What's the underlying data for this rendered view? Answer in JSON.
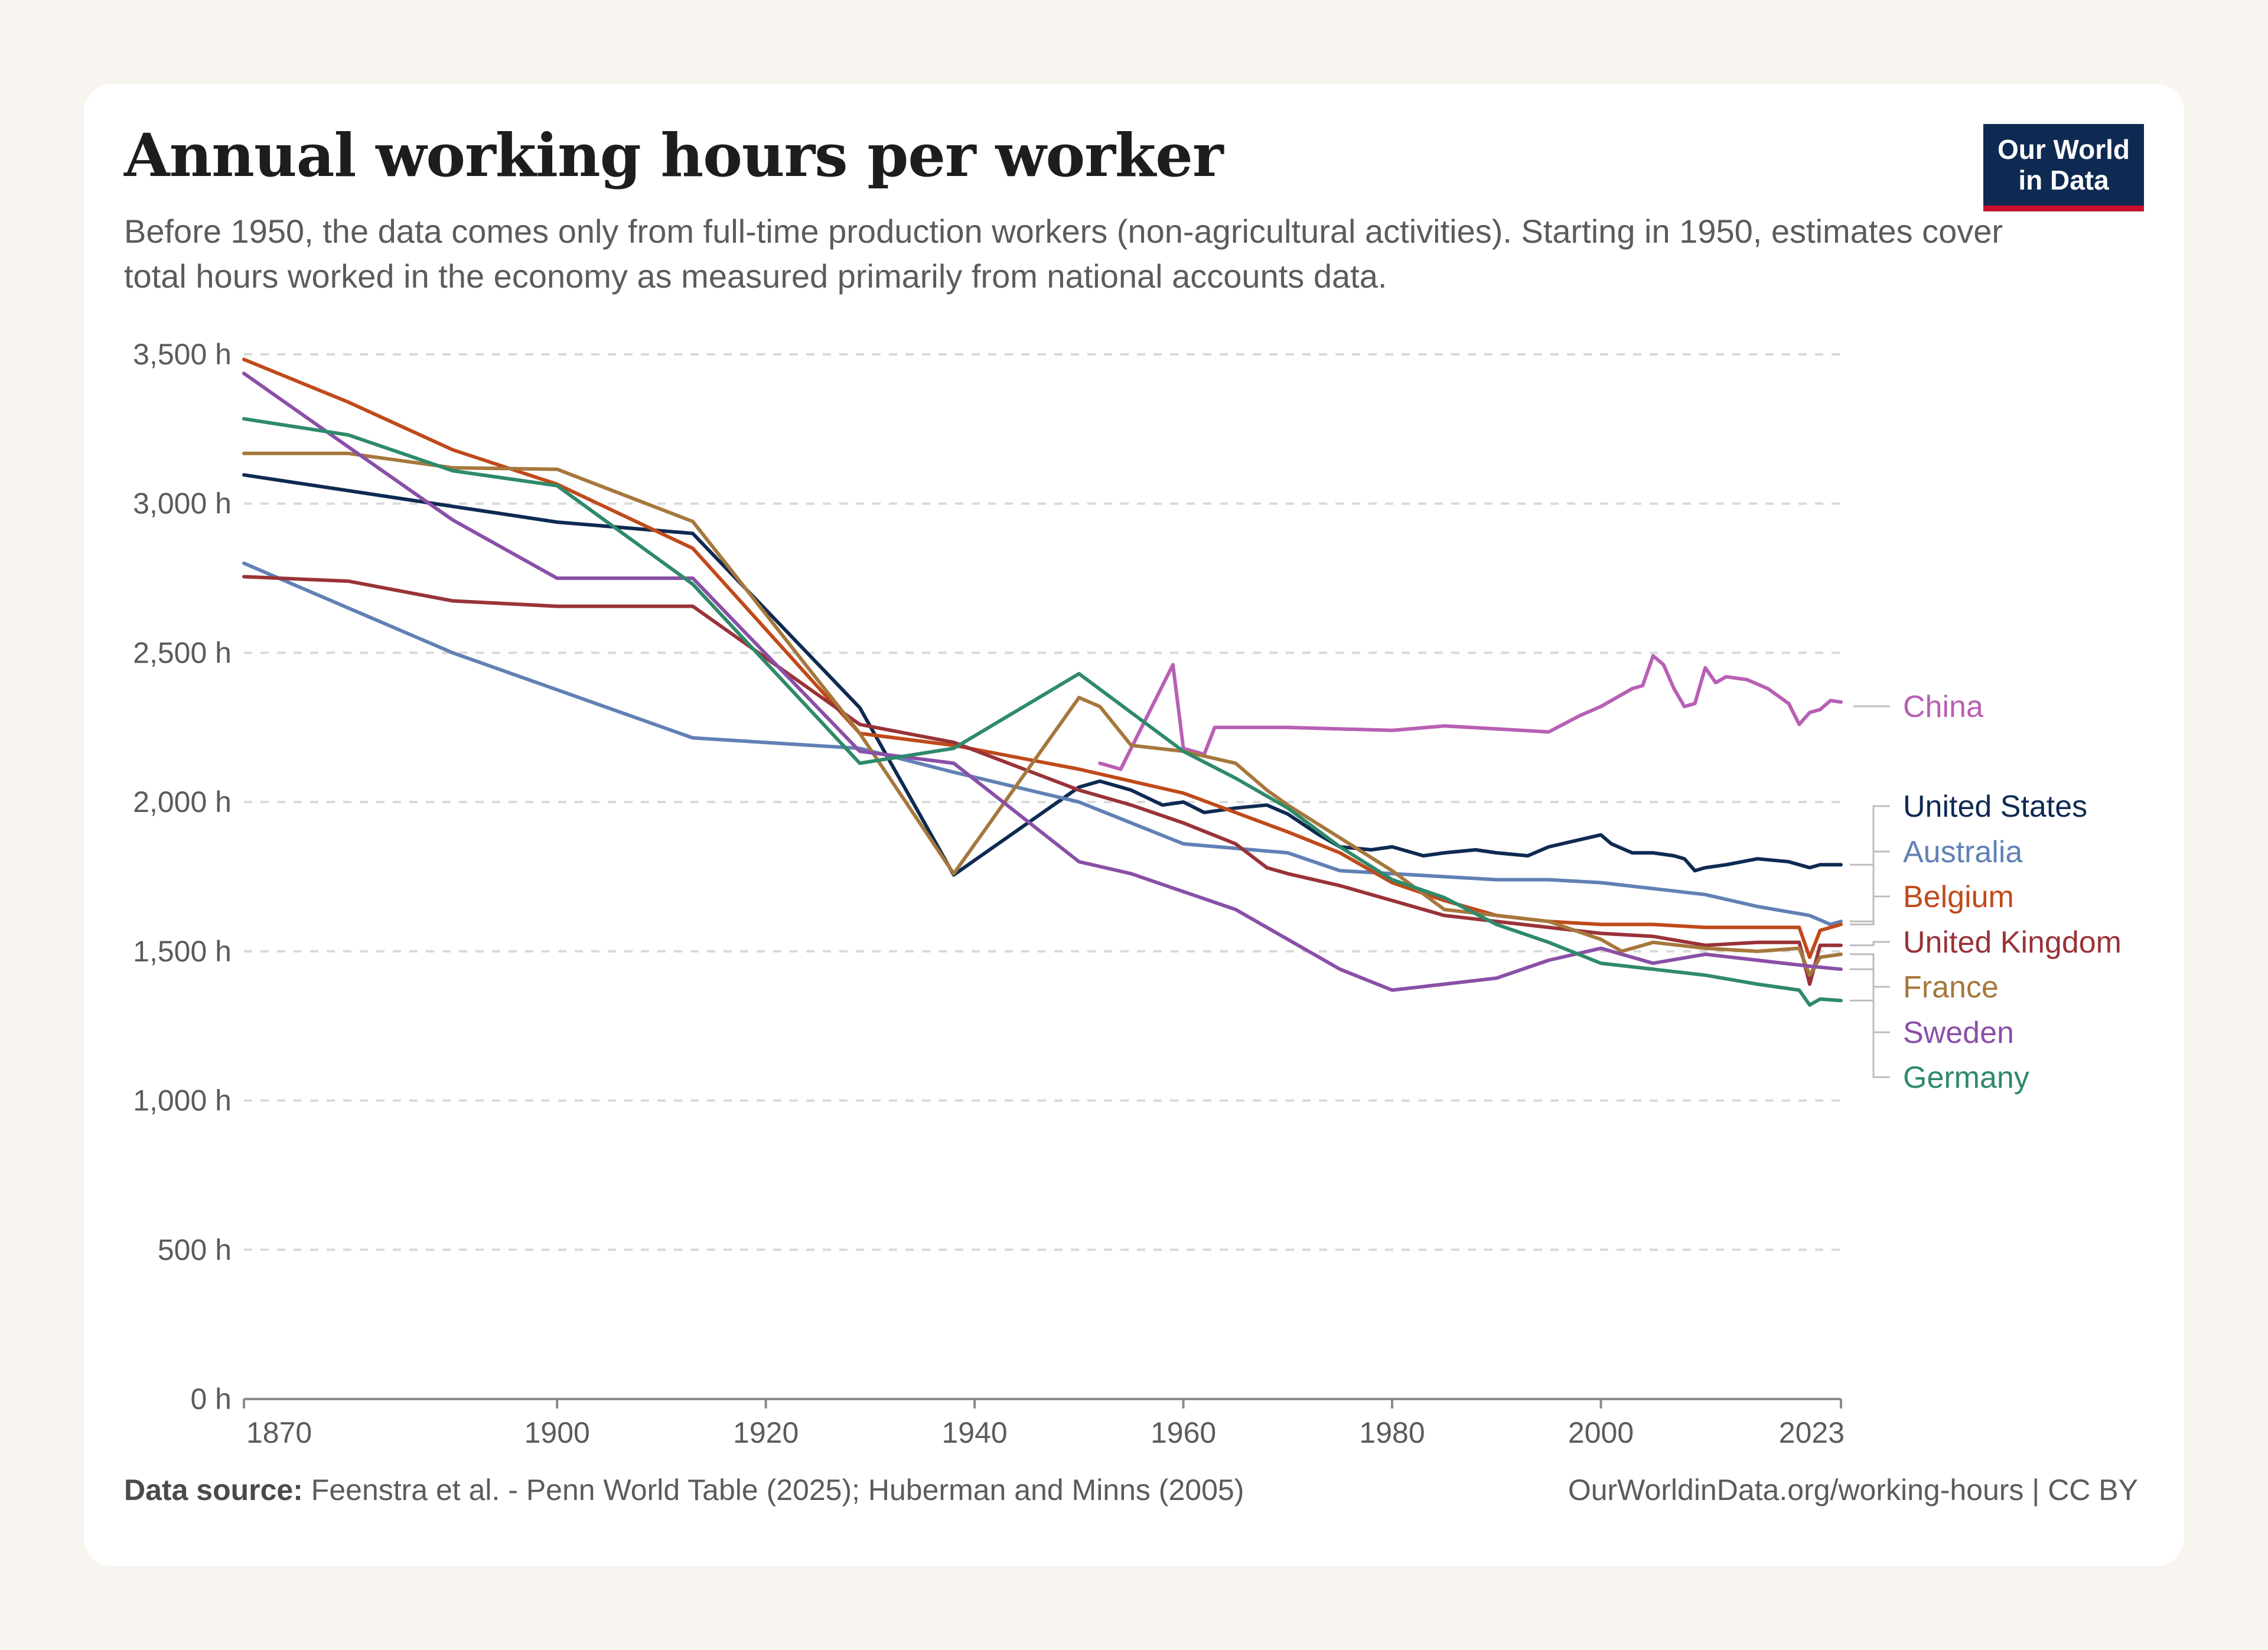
{
  "header": {
    "title": "Annual working hours per worker",
    "subtitle": "Before 1950, the data comes only from full-time production workers (non-agricultural activities). Starting in 1950, estimates cover total hours worked in the economy as measured primarily from national accounts data."
  },
  "logo": {
    "line1": "Our World",
    "line2": "in Data"
  },
  "footer": {
    "source_label": "Data source:",
    "source_text": "Feenstra et al. - Penn World Table (2025); Huberman and Minns (2005)",
    "link": "OurWorldinData.org/working-hours | CC BY"
  },
  "chart_data": {
    "type": "line",
    "title": "Annual working hours per worker",
    "xlim": [
      1870,
      2023
    ],
    "ylim": [
      0,
      3500
    ],
    "yticks": [
      0,
      500,
      1000,
      1500,
      2000,
      2500,
      3000,
      3500
    ],
    "ytick_labels": [
      "0 h",
      "500 h",
      "1,000 h",
      "1,500 h",
      "2,000 h",
      "2,500 h",
      "3,000 h",
      "3,500 h"
    ],
    "xticks": [
      1870,
      1900,
      1920,
      1940,
      1960,
      1980,
      2000,
      2023
    ],
    "xtick_labels": [
      "1870",
      "1900",
      "1920",
      "1940",
      "1960",
      "1980",
      "2000",
      "2023"
    ],
    "grid": true,
    "legend": "right, labels at line ends",
    "series": [
      {
        "name": "China",
        "color": "#b85fb4",
        "x": [
          1952,
          1954,
          1959,
          1960,
          1962,
          1963,
          1970,
          1980,
          1985,
          1990,
          1995,
          1998,
          2000,
          2003,
          2004,
          2005,
          2006,
          2007,
          2008,
          2009,
          2010,
          2011,
          2012,
          2014,
          2016,
          2018,
          2019,
          2020,
          2021,
          2022,
          2023
        ],
        "y": [
          2130,
          2110,
          2460,
          2180,
          2160,
          2250,
          2250,
          2240,
          2255,
          2245,
          2235,
          2290,
          2320,
          2380,
          2390,
          2490,
          2460,
          2380,
          2320,
          2330,
          2450,
          2400,
          2420,
          2410,
          2380,
          2330,
          2260,
          2300,
          2310,
          2340,
          2335
        ]
      },
      {
        "name": "United States",
        "color": "#0e2a52",
        "x": [
          1870,
          1900,
          1913,
          1929,
          1938,
          1950,
          1952,
          1955,
          1958,
          1960,
          1962,
          1965,
          1968,
          1970,
          1973,
          1975,
          1978,
          1980,
          1983,
          1985,
          1988,
          1990,
          1993,
          1995,
          2000,
          2001,
          2003,
          2005,
          2007,
          2008,
          2009,
          2010,
          2012,
          2015,
          2018,
          2019,
          2020,
          2021,
          2023
        ],
        "y": [
          3096,
          2938,
          2900,
          2316,
          1756,
          2050,
          2070,
          2040,
          1990,
          2000,
          1965,
          1980,
          1990,
          1960,
          1890,
          1850,
          1840,
          1850,
          1820,
          1830,
          1840,
          1830,
          1820,
          1850,
          1890,
          1860,
          1830,
          1830,
          1820,
          1810,
          1770,
          1780,
          1790,
          1810,
          1800,
          1790,
          1780,
          1790,
          1790
        ]
      },
      {
        "name": "Australia",
        "color": "#6180b5",
        "x": [
          1870,
          1890,
          1913,
          1929,
          1938,
          1950,
          1960,
          1970,
          1975,
          1980,
          1985,
          1990,
          1995,
          2000,
          2005,
          2010,
          2015,
          2020,
          2022,
          2023
        ],
        "y": [
          2800,
          2500,
          2215,
          2180,
          2100,
          2000,
          1860,
          1830,
          1770,
          1760,
          1750,
          1740,
          1740,
          1730,
          1710,
          1690,
          1650,
          1620,
          1590,
          1600
        ]
      },
      {
        "name": "Belgium",
        "color": "#c04a1a",
        "x": [
          1870,
          1880,
          1890,
          1900,
          1913,
          1929,
          1938,
          1950,
          1960,
          1970,
          1975,
          1980,
          1985,
          1990,
          1995,
          2000,
          2005,
          2010,
          2015,
          2019,
          2020,
          2021,
          2023
        ],
        "y": [
          3483,
          3340,
          3180,
          3065,
          2850,
          2230,
          2190,
          2110,
          2030,
          1900,
          1830,
          1730,
          1670,
          1620,
          1600,
          1590,
          1590,
          1580,
          1580,
          1580,
          1480,
          1570,
          1590
        ]
      },
      {
        "name": "United Kingdom",
        "color": "#993338",
        "x": [
          1870,
          1880,
          1890,
          1900,
          1913,
          1929,
          1938,
          1950,
          1955,
          1960,
          1965,
          1968,
          1970,
          1975,
          1980,
          1985,
          1990,
          1995,
          2000,
          2005,
          2010,
          2015,
          2019,
          2020,
          2021,
          2023
        ],
        "y": [
          2755,
          2740,
          2674,
          2656,
          2656,
          2260,
          2200,
          2040,
          1990,
          1930,
          1860,
          1780,
          1760,
          1720,
          1670,
          1620,
          1600,
          1580,
          1560,
          1550,
          1520,
          1530,
          1530,
          1390,
          1520,
          1520
        ]
      },
      {
        "name": "France",
        "color": "#a6773c",
        "x": [
          1870,
          1880,
          1890,
          1900,
          1913,
          1929,
          1938,
          1950,
          1952,
          1955,
          1960,
          1965,
          1968,
          1970,
          1975,
          1980,
          1985,
          1990,
          1995,
          2000,
          2002,
          2005,
          2010,
          2015,
          2019,
          2020,
          2021,
          2023
        ],
        "y": [
          3168,
          3168,
          3120,
          3115,
          2940,
          2230,
          1760,
          2350,
          2320,
          2190,
          2170,
          2130,
          2040,
          1990,
          1880,
          1770,
          1640,
          1620,
          1600,
          1540,
          1500,
          1530,
          1510,
          1500,
          1510,
          1420,
          1480,
          1490
        ]
      },
      {
        "name": "Sweden",
        "color": "#8a4fa7",
        "x": [
          1870,
          1880,
          1890,
          1900,
          1913,
          1929,
          1938,
          1950,
          1955,
          1960,
          1965,
          1970,
          1975,
          1980,
          1985,
          1990,
          1995,
          2000,
          2005,
          2010,
          2015,
          2020,
          2023
        ],
        "y": [
          3436,
          3190,
          2945,
          2750,
          2750,
          2170,
          2130,
          1800,
          1760,
          1700,
          1640,
          1540,
          1440,
          1370,
          1390,
          1410,
          1470,
          1510,
          1460,
          1490,
          1470,
          1450,
          1440
        ]
      },
      {
        "name": "Germany",
        "color": "#2e8a6a",
        "x": [
          1870,
          1880,
          1890,
          1900,
          1913,
          1929,
          1938,
          1950,
          1955,
          1960,
          1965,
          1970,
          1975,
          1980,
          1985,
          1990,
          1995,
          2000,
          2005,
          2010,
          2015,
          2019,
          2020,
          2021,
          2023
        ],
        "y": [
          3284,
          3230,
          3110,
          3060,
          2730,
          2130,
          2180,
          2430,
          2300,
          2170,
          2080,
          1980,
          1850,
          1740,
          1680,
          1590,
          1530,
          1460,
          1440,
          1420,
          1390,
          1370,
          1320,
          1340,
          1335
        ]
      }
    ],
    "label_order": [
      "China",
      "United States",
      "Australia",
      "Belgium",
      "United Kingdom",
      "France",
      "Sweden",
      "Germany"
    ]
  }
}
